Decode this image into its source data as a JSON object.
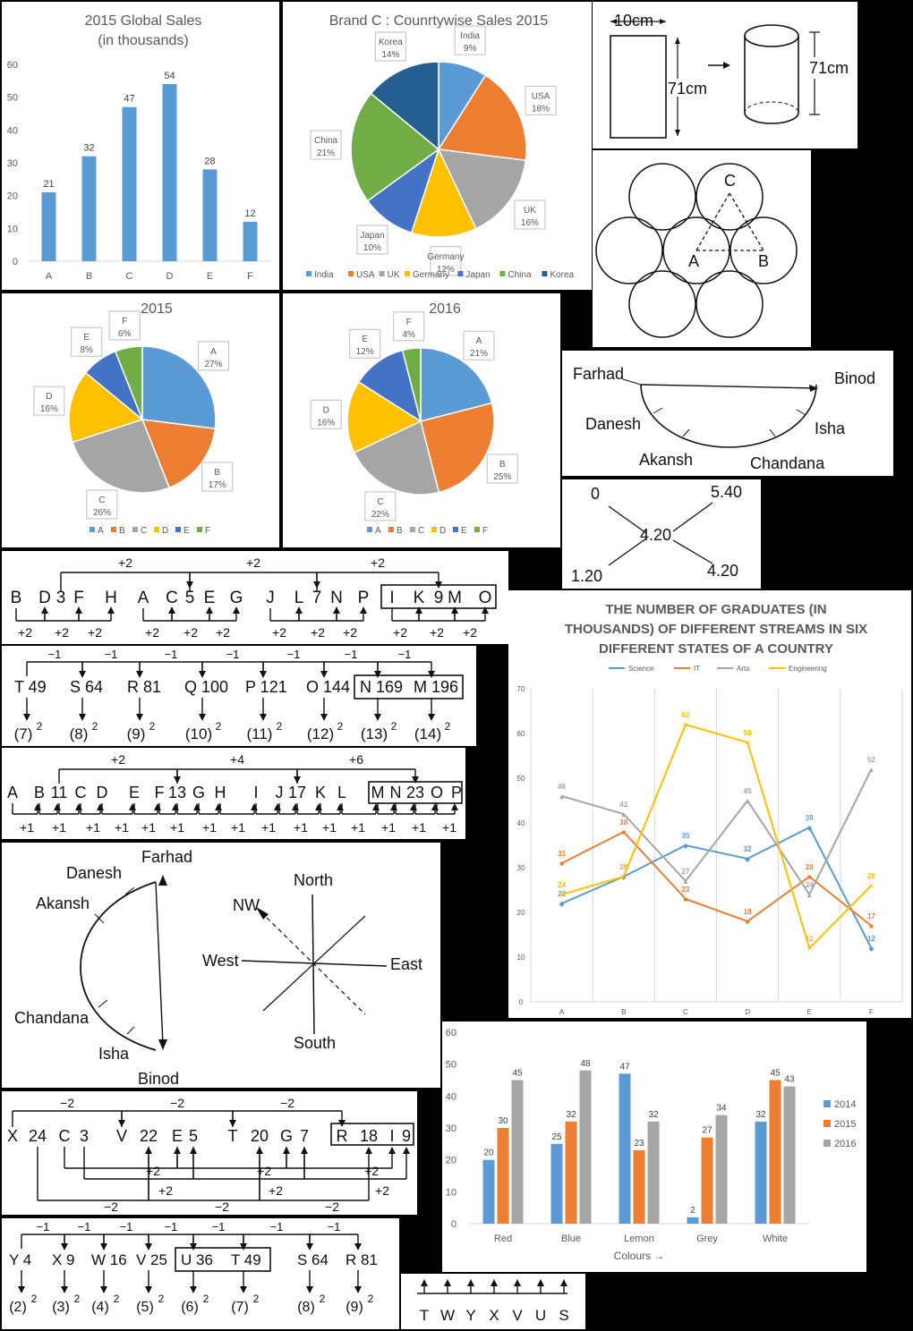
{
  "colors": {
    "blue": "#5b9bd5",
    "orange": "#ed7d31",
    "gray": "#a5a5a5",
    "yellow": "#ffc000",
    "darkblue": "#4472c4",
    "green": "#70ad47",
    "navy": "#255e91",
    "axis": "#595959",
    "grid": "#d9d9d9"
  },
  "chart_data": [
    {
      "type": "bar",
      "title": "2015 Global Sales (in thousands)",
      "categories": [
        "A",
        "B",
        "C",
        "D",
        "E",
        "F"
      ],
      "values": [
        21,
        32,
        47,
        54,
        28,
        12
      ],
      "ylim": [
        0,
        60
      ],
      "yticks": [
        0,
        10,
        20,
        30,
        40,
        50,
        60
      ],
      "grid": false
    },
    {
      "type": "pie",
      "title": "Brand C : Counrtywise Sales 2015",
      "labels": [
        "India",
        "USA",
        "UK",
        "Germany",
        "Japan",
        "China",
        "Korea"
      ],
      "values": [
        9,
        18,
        16,
        12,
        10,
        21,
        14
      ],
      "value_labels": [
        "9%",
        "18%",
        "16%",
        "12%",
        "10%",
        "21%",
        "14%"
      ],
      "legend": "bottom"
    },
    {
      "type": "pie",
      "title": "2015",
      "labels": [
        "A",
        "B",
        "C",
        "D",
        "E",
        "F"
      ],
      "values": [
        27,
        17,
        26,
        16,
        8,
        6
      ],
      "value_labels": [
        "27%",
        "17%",
        "26%",
        "16%",
        "8%",
        "6%"
      ],
      "legend": "bottom"
    },
    {
      "type": "pie",
      "title": "2016",
      "labels": [
        "A",
        "B",
        "C",
        "D",
        "E",
        "F"
      ],
      "values": [
        21,
        25,
        22,
        16,
        12,
        4
      ],
      "value_labels": [
        "21%",
        "25%",
        "22%",
        "16%",
        "12%",
        "4%"
      ],
      "legend": "bottom"
    },
    {
      "type": "line",
      "title": "THE NUMBER OF GRADUATES (IN THOUSANDS) OF DIFFERENT STREAMS IN SIX DIFFERENT STATES OF A COUNTRY",
      "categories": [
        "A",
        "B",
        "C",
        "D",
        "E",
        "F"
      ],
      "series": [
        {
          "name": "Science",
          "values": [
            22,
            28,
            35,
            32,
            39,
            12
          ]
        },
        {
          "name": "IT",
          "values": [
            31,
            38,
            23,
            18,
            28,
            17
          ]
        },
        {
          "name": "Arts",
          "values": [
            46,
            42,
            27,
            45,
            24,
            52
          ]
        },
        {
          "name": "Engineering",
          "values": [
            24,
            28,
            62,
            58,
            12,
            26
          ]
        }
      ],
      "ylim": [
        0,
        70
      ],
      "yticks": [
        0,
        10,
        20,
        30,
        40,
        50,
        60,
        70
      ],
      "grid": true,
      "legend": "top"
    },
    {
      "type": "bar",
      "title": "",
      "categories": [
        "Red",
        "Blue",
        "Lemon",
        "Grey",
        "White"
      ],
      "series": [
        {
          "name": "2014",
          "values": [
            20,
            25,
            47,
            2,
            32
          ]
        },
        {
          "name": "2015",
          "values": [
            30,
            32,
            23,
            27,
            45
          ]
        },
        {
          "name": "2016",
          "values": [
            45,
            48,
            32,
            34,
            43
          ]
        }
      ],
      "xlabel": "Colours →",
      "ylim": [
        0,
        60
      ],
      "yticks": [
        0,
        10,
        20,
        30,
        40,
        50,
        60
      ],
      "grid": false,
      "legend": "right"
    }
  ],
  "figures": {
    "cylinder": {
      "width_label": "10cm",
      "height_label_left": "71cm",
      "height_label_right": "71cm"
    },
    "circles": {
      "labels": [
        "C",
        "A",
        "B"
      ]
    },
    "semicircle_top": {
      "names": [
        "Farhad",
        "Binod",
        "Danesh",
        "Isha",
        "Akansh",
        "Chandana"
      ]
    },
    "cross": {
      "tl": "0",
      "tr": "5.40",
      "center": "4.20",
      "bl": "1.20",
      "br": "4.20"
    },
    "series1": {
      "over": [
        "+2",
        "+2",
        "+2"
      ],
      "under": [
        "+2",
        "+2",
        "+2",
        "+2",
        "+2",
        "+2",
        "+2",
        "+2",
        "+2",
        "+2",
        "+2",
        "+2"
      ],
      "tokens": [
        "B",
        "D",
        "3",
        "F",
        "H",
        "A",
        "C",
        "5",
        "E",
        "G",
        "J",
        "L",
        "7",
        "N",
        "P",
        "I",
        "K",
        "9",
        "M",
        "O"
      ]
    },
    "series2": {
      "over": [
        "−1",
        "−1",
        "−1",
        "−1",
        "−1",
        "−1",
        "−1"
      ],
      "terms": [
        "T 49",
        "S 64",
        "R 81",
        "Q 100",
        "P 121",
        "O 144",
        "N 169",
        "M 196"
      ],
      "powers": [
        "(7)",
        "(8)",
        "(9)",
        "(10)",
        "(11)",
        "(12)",
        "(13)",
        "(14)"
      ],
      "exp": "2"
    },
    "series3": {
      "over": [
        "+2",
        "+4",
        "+6"
      ],
      "tokens": [
        "A",
        "B",
        "11",
        "C",
        "D",
        "E",
        "F",
        "13",
        "G",
        "H",
        "I",
        "J",
        "17",
        "K",
        "L",
        "M",
        "N",
        "23",
        "O",
        "P"
      ],
      "under": "+1"
    },
    "semicircle_left": {
      "names": [
        "Farhad",
        "Danesh",
        "Akansh",
        "Chandana",
        "Isha",
        "Binod"
      ]
    },
    "compass": {
      "north": "North",
      "south": "South",
      "east": "East",
      "west": "West",
      "nw": "NW"
    },
    "series4": {
      "tokens": [
        "X",
        "24",
        "C",
        "3",
        "V",
        "22",
        "E",
        "5",
        "T",
        "20",
        "G",
        "7",
        "R",
        "18",
        "I",
        "9"
      ],
      "top": [
        "−2",
        "−2",
        "−2"
      ],
      "mid": [
        "+2",
        "+2",
        "+2"
      ],
      "low": [
        "+2",
        "+2",
        "+2"
      ],
      "bottom": [
        "−2",
        "−2",
        "−2"
      ]
    },
    "series5": {
      "over": [
        "−1",
        "−1",
        "−1",
        "−1",
        "−1",
        "−1",
        "−1"
      ],
      "terms": [
        "Y 4",
        "X 9",
        "W 16",
        "V 25",
        "U 36",
        "T 49",
        "S 64",
        "R 81"
      ],
      "powers": [
        "(2)",
        "(3)",
        "(4)",
        "(5)",
        "(6)",
        "(7)",
        "(8)",
        "(9)"
      ],
      "exp": "2"
    },
    "arrows_row": {
      "letters": [
        "T",
        "W",
        "Y",
        "X",
        "V",
        "U",
        "S"
      ]
    }
  }
}
